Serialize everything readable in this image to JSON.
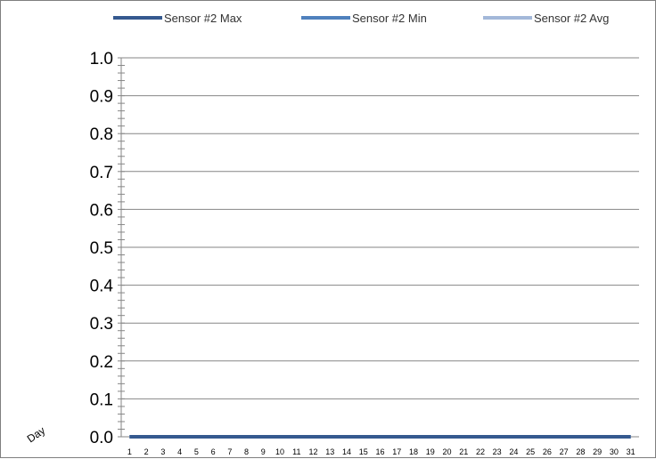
{
  "chart_data": {
    "type": "line",
    "title": "",
    "xlabel": "",
    "ylabel": "",
    "corner_label": "Day",
    "ylim": [
      0,
      1
    ],
    "yticks": [
      "0.0",
      "0.1",
      "0.2",
      "0.3",
      "0.4",
      "0.5",
      "0.6",
      "0.7",
      "0.8",
      "0.9",
      "1.0"
    ],
    "x": [
      1,
      2,
      3,
      4,
      5,
      6,
      7,
      8,
      9,
      10,
      11,
      12,
      13,
      14,
      15,
      16,
      17,
      18,
      19,
      20,
      21,
      22,
      23,
      24,
      25,
      26,
      27,
      28,
      29,
      30,
      31
    ],
    "grid": true,
    "legend_position": "top",
    "series": [
      {
        "name": "Sensor #2 Max",
        "color": "#35598f",
        "values": [
          0,
          0,
          0,
          0,
          0,
          0,
          0,
          0,
          0,
          0,
          0,
          0,
          0,
          0,
          0,
          0,
          0,
          0,
          0,
          0,
          0,
          0,
          0,
          0,
          0,
          0,
          0,
          0,
          0,
          0,
          0
        ]
      },
      {
        "name": "Sensor #2 Min",
        "color": "#4f81bd",
        "values": [
          0,
          0,
          0,
          0,
          0,
          0,
          0,
          0,
          0,
          0,
          0,
          0,
          0,
          0,
          0,
          0,
          0,
          0,
          0,
          0,
          0,
          0,
          0,
          0,
          0,
          0,
          0,
          0,
          0,
          0,
          0
        ]
      },
      {
        "name": "Sensor #2 Avg",
        "color": "#a3b8d9",
        "values": [
          0,
          0,
          0,
          0,
          0,
          0,
          0,
          0,
          0,
          0,
          0,
          0,
          0,
          0,
          0,
          0,
          0,
          0,
          0,
          0,
          0,
          0,
          0,
          0,
          0,
          0,
          0,
          0,
          0,
          0,
          0
        ]
      }
    ]
  }
}
